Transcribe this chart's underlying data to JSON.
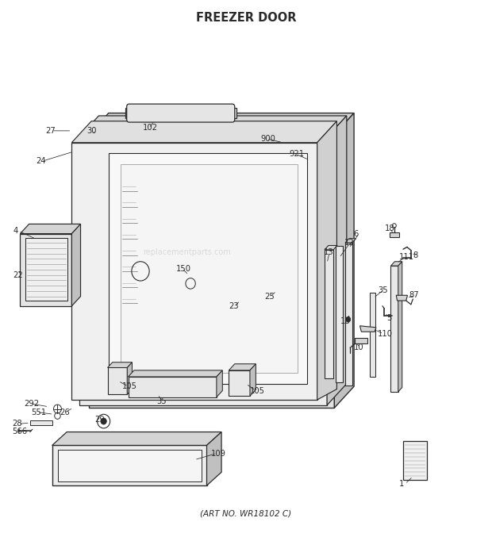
{
  "title": "FREEZER DOOR",
  "subtitle": "(ART NO. WR18102 C)",
  "bg_color": "#ffffff",
  "title_fontsize": 10.5,
  "subtitle_fontsize": 7.5,
  "line_color": "#2a2a2a",
  "label_fontsize": 7.2,
  "fill_light": "#e8e8e8",
  "fill_mid": "#d4d4d4",
  "fill_dark": "#c0c0c0",
  "fill_white": "#f5f5f5"
}
